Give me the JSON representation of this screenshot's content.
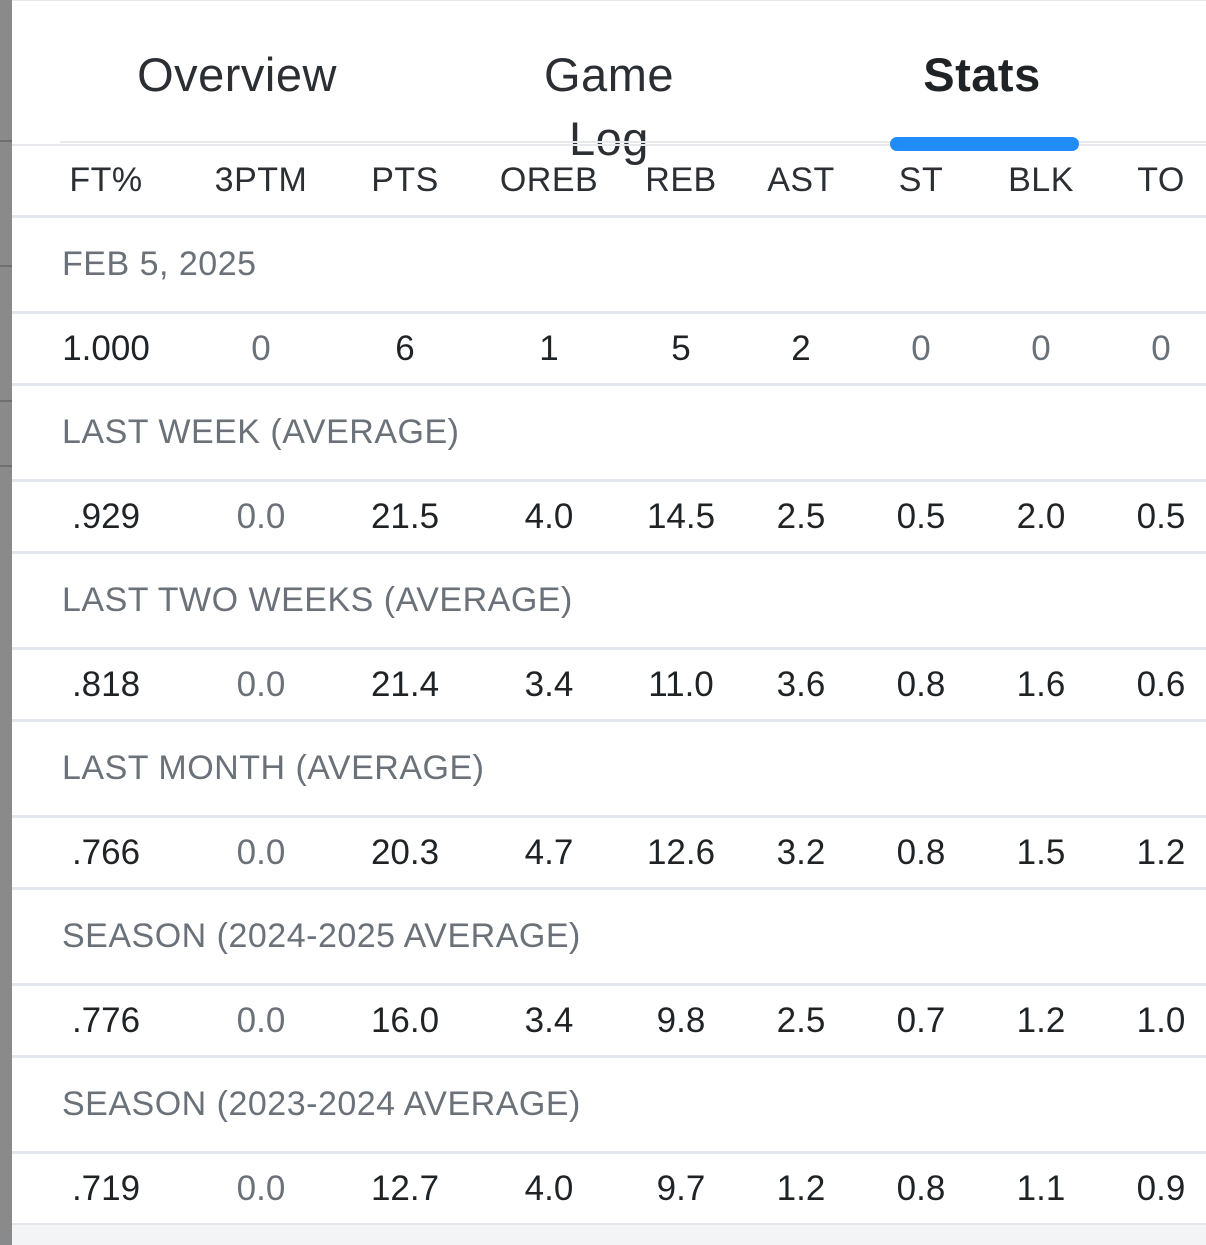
{
  "tabs": [
    {
      "label": "Overview",
      "active": false
    },
    {
      "label": "Game Log",
      "active": false
    },
    {
      "label": "Stats",
      "active": true
    }
  ],
  "accent_color": "#1f8cf7",
  "table": {
    "columns": [
      "FT%",
      "3PTM",
      "PTS",
      "OREB",
      "REB",
      "AST",
      "ST",
      "BLK",
      "TO"
    ],
    "sections": [
      {
        "label": "FEB 5, 2025",
        "values": [
          "1.000",
          "0",
          "6",
          "1",
          "5",
          "2",
          "0",
          "0",
          "0"
        ],
        "muted": [
          false,
          true,
          false,
          false,
          false,
          false,
          true,
          true,
          true
        ]
      },
      {
        "label": "LAST WEEK (AVERAGE)",
        "values": [
          ".929",
          "0.0",
          "21.5",
          "4.0",
          "14.5",
          "2.5",
          "0.5",
          "2.0",
          "0.5"
        ],
        "muted": [
          false,
          true,
          false,
          false,
          false,
          false,
          false,
          false,
          false
        ]
      },
      {
        "label": "LAST TWO WEEKS (AVERAGE)",
        "values": [
          ".818",
          "0.0",
          "21.4",
          "3.4",
          "11.0",
          "3.6",
          "0.8",
          "1.6",
          "0.6"
        ],
        "muted": [
          false,
          true,
          false,
          false,
          false,
          false,
          false,
          false,
          false
        ]
      },
      {
        "label": "LAST MONTH (AVERAGE)",
        "values": [
          ".766",
          "0.0",
          "20.3",
          "4.7",
          "12.6",
          "3.2",
          "0.8",
          "1.5",
          "1.2"
        ],
        "muted": [
          false,
          true,
          false,
          false,
          false,
          false,
          false,
          false,
          false
        ]
      },
      {
        "label": "SEASON (2024-2025 AVERAGE)",
        "values": [
          ".776",
          "0.0",
          "16.0",
          "3.4",
          "9.8",
          "2.5",
          "0.7",
          "1.2",
          "1.0"
        ],
        "muted": [
          false,
          true,
          false,
          false,
          false,
          false,
          false,
          false,
          false
        ]
      },
      {
        "label": "SEASON (2023-2024 AVERAGE)",
        "values": [
          ".719",
          "0.0",
          "12.7",
          "4.0",
          "9.7",
          "1.2",
          "0.8",
          "1.1",
          "0.9"
        ],
        "muted": [
          false,
          true,
          false,
          false,
          false,
          false,
          false,
          false,
          false
        ]
      }
    ]
  }
}
